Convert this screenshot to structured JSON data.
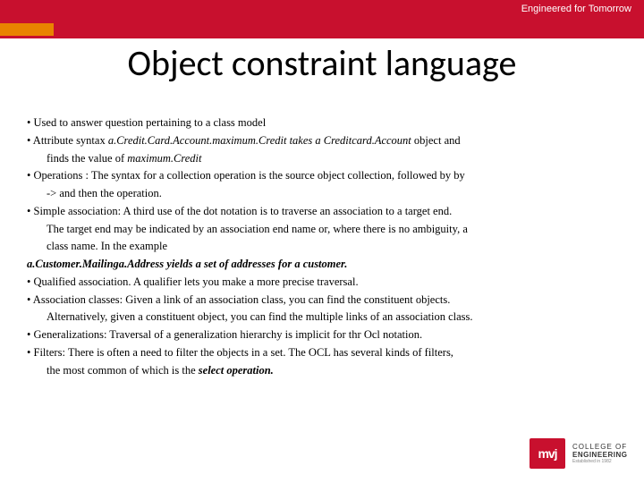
{
  "header": {
    "tagline": "Engineered for Tomorrow"
  },
  "title": "Object constraint language",
  "bullets": {
    "b0": "• Used to answer question pertaining to a class model",
    "b1a": "• Attribute syntax ",
    "b1b": "a.Credit.Card.Account.maximum.Credit takes a Creditcard.Account",
    "b1c": " object and",
    "b1d": "finds the value of ",
    "b1e": "maximum.Credit",
    "b2a": "• Operations : The syntax for a collection operation is the source object collection, followed by by",
    "b2b": "-> and then the operation.",
    "b3a": "• Simple association: A third use of the dot notation is to traverse an association to a target end.",
    "b3b": "The target end may be indicated by an association end name or, where there is no ambiguity, a",
    "b3c": "class name. In the example",
    "b4": "a.Customer.Mailinga.Address yields a set of addresses for a customer.",
    "b5": "• Qualified association. A qualifier lets you make a more precise traversal.",
    "b6a": "• Association classes: Given a link of an association class, you can find the  constituent objects.",
    "b6b": "Alternatively, given a constituent object, you can find the multiple links of an association class.",
    "b7": "• Generalizations: Traversal of a generalization hierarchy is implicit for thr Ocl notation.",
    "b8a": "• Filters: There is often a need to filter the objects in a set. The OCL has several kinds of filters,",
    "b8b": "the most common of which is the ",
    "b8c": "select operation."
  },
  "logo": {
    "abbr": "mvj",
    "line1": "COLLEGE OF",
    "line2": "ENGINEERING",
    "line3": "Established in 1982"
  },
  "colors": {
    "brand_red": "#c8102e",
    "brand_orange": "#e98300"
  }
}
